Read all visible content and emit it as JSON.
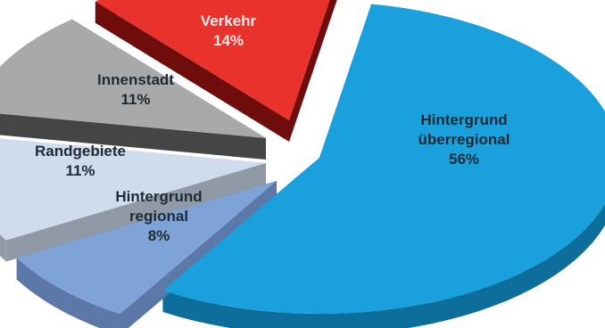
{
  "chart_data": {
    "type": "pie",
    "style": "3d-exploded",
    "title": "",
    "slices": [
      {
        "label_lines": [
          "Hintergrund",
          "überregional"
        ],
        "value": 56,
        "value_label": "56%",
        "color": "#1aa0dc",
        "side_color": "#0d6e9c",
        "label_color": "#1f2a33"
      },
      {
        "label_lines": [
          "Hintergrund",
          "regional"
        ],
        "value": 8,
        "value_label": "8%",
        "color": "#7fa3d6",
        "side_color": "#5b78a8",
        "label_color": "#1f2a33"
      },
      {
        "label_lines": [
          "Randgebiete"
        ],
        "value": 11,
        "value_label": "11%",
        "color": "#cfdcee",
        "side_color": "#8f9aa6",
        "label_color": "#1f2a33"
      },
      {
        "label_lines": [
          "Innenstadt"
        ],
        "value": 11,
        "value_label": "11%",
        "color": "#a9a9a9",
        "side_color": "#454545",
        "label_color": "#1f2a33"
      },
      {
        "label_lines": [
          "Verkehr"
        ],
        "value": 14,
        "value_label": "14%",
        "color": "#e8322b",
        "side_color": "#6f0d0d",
        "label_color": "#fdeaea"
      }
    ]
  }
}
